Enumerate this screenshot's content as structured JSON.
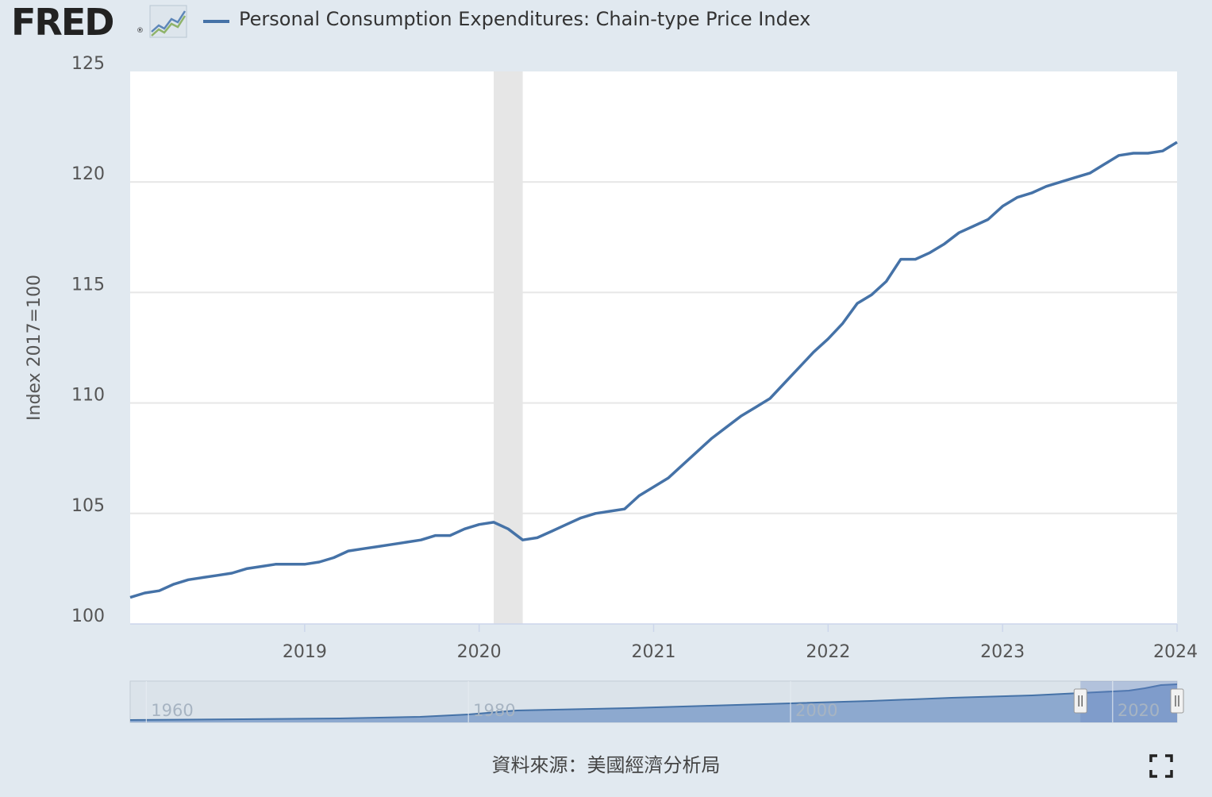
{
  "header": {
    "logo_text": "FRED",
    "logo_mark": "®",
    "logo_icon": "graph-line-icon"
  },
  "legend": {
    "label": "Personal Consumption Expenditures: Chain-type Price Index",
    "color": "#4572a7"
  },
  "chart_data": {
    "type": "line",
    "title": "",
    "xlabel": "",
    "ylabel": "Index 2017=100",
    "ylim": [
      100,
      125
    ],
    "yticks": [
      "100",
      "105",
      "110",
      "115",
      "120",
      "125"
    ],
    "xlim": [
      "2018-01-01",
      "2024-01-01"
    ],
    "xticks": [
      "2019",
      "2020",
      "2021",
      "2022",
      "2023",
      "2024"
    ],
    "grid": true,
    "recession_band": {
      "start": "2020-02-01",
      "end": "2020-04-01",
      "color": "#e6e6e6"
    },
    "series": [
      {
        "name": "Personal Consumption Expenditures: Chain-type Price Index",
        "color": "#4572a7",
        "x": [
          "2018-01",
          "2018-02",
          "2018-03",
          "2018-04",
          "2018-05",
          "2018-06",
          "2018-07",
          "2018-08",
          "2018-09",
          "2018-10",
          "2018-11",
          "2018-12",
          "2019-01",
          "2019-02",
          "2019-03",
          "2019-04",
          "2019-05",
          "2019-06",
          "2019-07",
          "2019-08",
          "2019-09",
          "2019-10",
          "2019-11",
          "2019-12",
          "2020-01",
          "2020-02",
          "2020-03",
          "2020-04",
          "2020-05",
          "2020-06",
          "2020-07",
          "2020-08",
          "2020-09",
          "2020-10",
          "2020-11",
          "2020-12",
          "2021-01",
          "2021-02",
          "2021-03",
          "2021-04",
          "2021-05",
          "2021-06",
          "2021-07",
          "2021-08",
          "2021-09",
          "2021-10",
          "2021-11",
          "2021-12",
          "2022-01",
          "2022-02",
          "2022-03",
          "2022-04",
          "2022-05",
          "2022-06",
          "2022-07",
          "2022-08",
          "2022-09",
          "2022-10",
          "2022-11",
          "2022-12",
          "2023-01",
          "2023-02",
          "2023-03",
          "2023-04",
          "2023-05",
          "2023-06",
          "2023-07",
          "2023-08",
          "2023-09",
          "2023-10",
          "2023-11",
          "2023-12",
          "2024-01"
        ],
        "values": [
          101.2,
          101.4,
          101.5,
          101.8,
          102.0,
          102.1,
          102.2,
          102.3,
          102.5,
          102.6,
          102.7,
          102.7,
          102.7,
          102.8,
          103.0,
          103.3,
          103.4,
          103.5,
          103.6,
          103.7,
          103.8,
          104.0,
          104.0,
          104.3,
          104.5,
          104.6,
          104.3,
          103.8,
          103.9,
          104.2,
          104.5,
          104.8,
          105.0,
          105.1,
          105.2,
          105.8,
          106.2,
          106.6,
          107.2,
          107.8,
          108.4,
          108.9,
          109.4,
          109.8,
          110.2,
          110.9,
          111.6,
          112.3,
          112.9,
          113.6,
          114.5,
          114.9,
          115.5,
          116.5,
          116.5,
          116.8,
          117.2,
          117.7,
          118.0,
          118.3,
          118.9,
          119.3,
          119.5,
          119.8,
          120.0,
          120.2,
          120.4,
          120.8,
          121.2,
          121.3,
          121.3,
          121.4,
          121.8
        ]
      }
    ]
  },
  "navigator": {
    "ticks": [
      "1960",
      "1980",
      "2000",
      "2020"
    ],
    "range_start": "1959-01",
    "range_end": "2024-01",
    "selected_start": "2018-01",
    "selected_end": "2024-01",
    "fill_color": "#8da9cf",
    "line_color": "#4572a7"
  },
  "footer": {
    "source": "資料來源：美國經濟分析局",
    "fullscreen_icon": "fullscreen-icon"
  }
}
